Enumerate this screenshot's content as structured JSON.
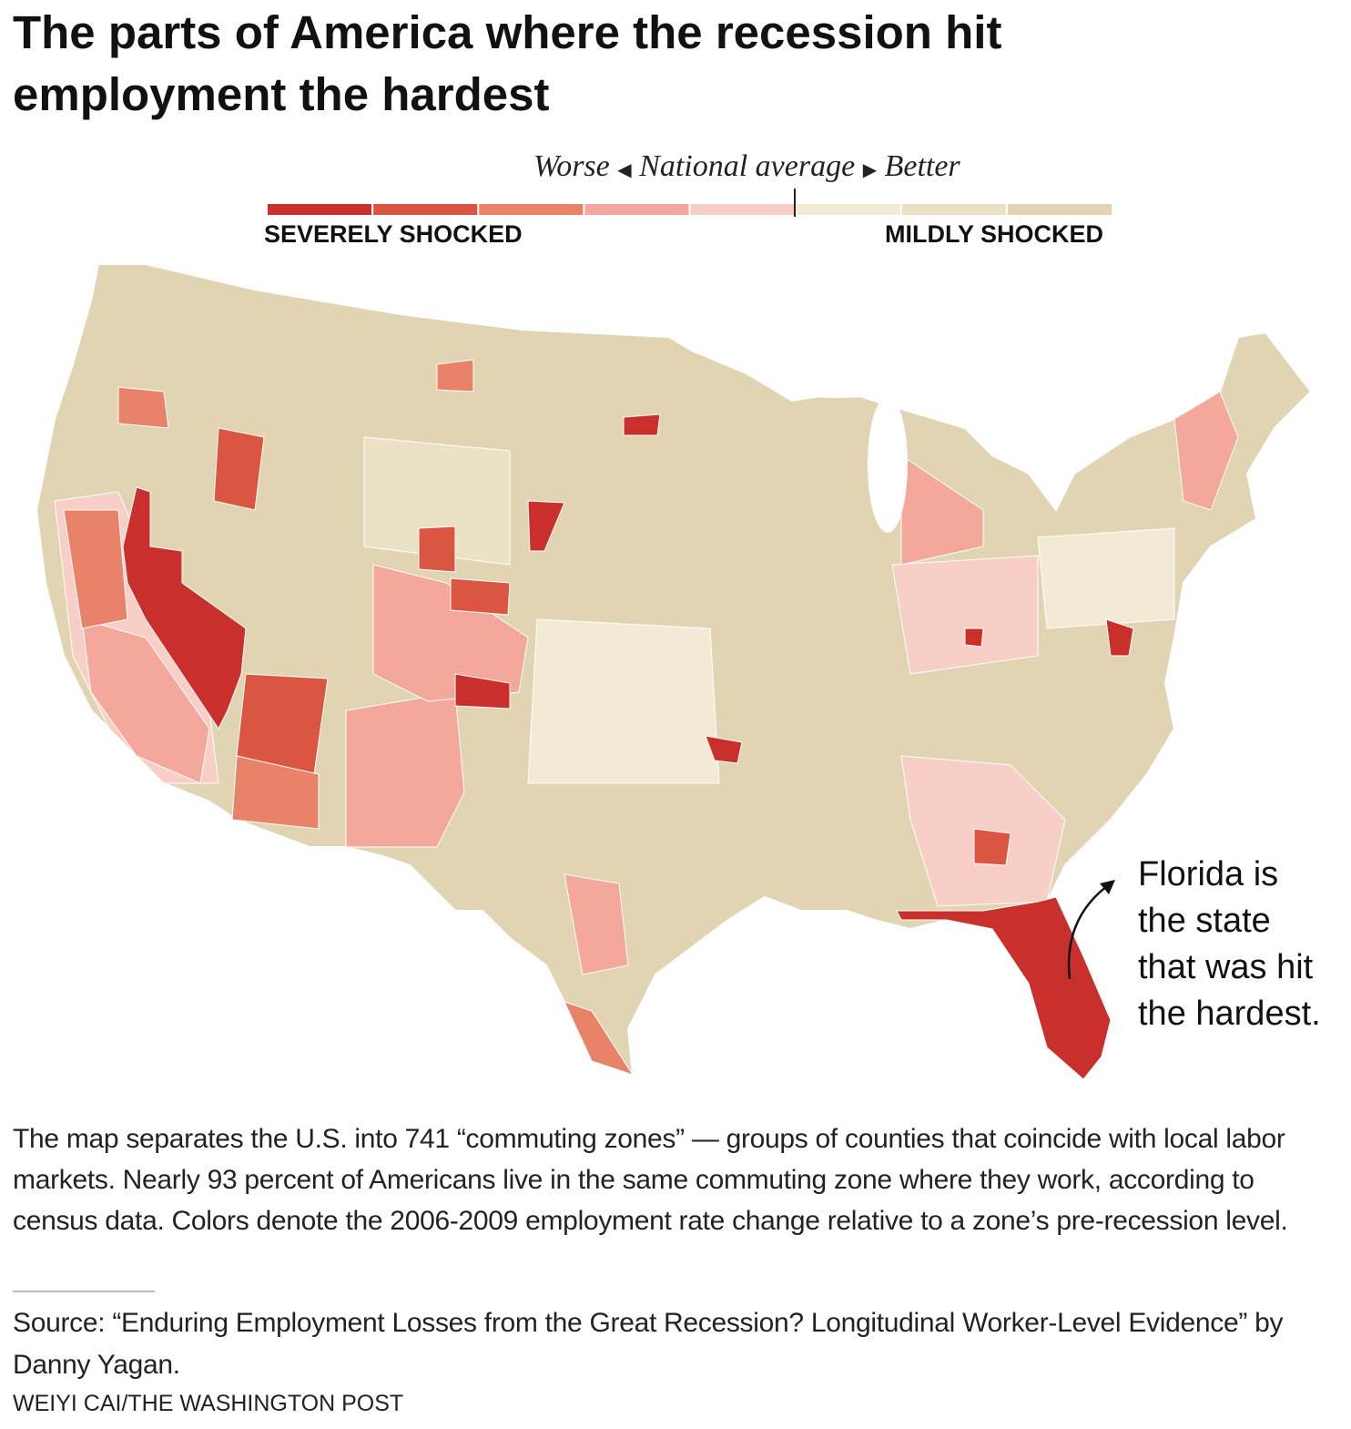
{
  "header": {
    "title": "The parts of America where the recession hit employment the hardest"
  },
  "legend": {
    "worse": "Worse",
    "middle": "National average",
    "better": "Better",
    "left_label": "SEVERELY SHOCKED",
    "right_label": "MILDLY SHOCKED",
    "colors": [
      "#c9302c",
      "#db5642",
      "#e8836a",
      "#f4a89c",
      "#f8cfc6",
      "#f2ead5",
      "#ebe2c6",
      "#e0d4b3"
    ]
  },
  "annotation": {
    "lines": [
      "Florida is",
      "the state",
      "that was hit",
      "the hardest."
    ]
  },
  "description": "The map separates the U.S. into 741 “commuting zones” — groups of counties that coincide with local labor markets. Nearly 93 percent of Americans live in the same commuting zone where they work, according to census data. Colors denote the 2006-2009 employment rate change relative to a zone’s pre-recession level.",
  "source": "Source: “Enduring Employment Losses from the Great Recession? Longitudinal Worker-Level Evidence” by Danny Yagan.",
  "credit": "WEIYI CAI/THE WASHINGTON POST"
}
